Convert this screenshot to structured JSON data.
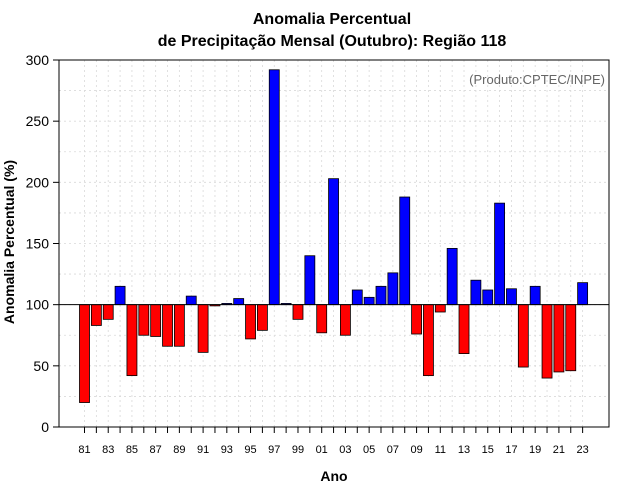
{
  "chart_data": {
    "type": "bar",
    "title": [
      "Anomalia Percentual",
      "de Precipitação Mensal (Outubro): Região 118"
    ],
    "xlabel": "Ano",
    "ylabel": "Anomalia Percentual (%)",
    "annotation": "(Produto:CPTEC/INPE)",
    "ylim": [
      0,
      300
    ],
    "yticks": [
      0,
      50,
      100,
      150,
      200,
      250,
      300
    ],
    "baseline": 100,
    "colors": {
      "above": "#0000ff",
      "below": "#ff0000",
      "outline": "#000000",
      "grid": "#d9d9d9"
    },
    "x_tick_labels": [
      "81",
      "83",
      "85",
      "87",
      "89",
      "91",
      "93",
      "95",
      "97",
      "99",
      "01",
      "03",
      "05",
      "07",
      "09",
      "11",
      "13",
      "15",
      "17",
      "19",
      "21",
      "23"
    ],
    "categories": [
      "81",
      "82",
      "83",
      "84",
      "85",
      "86",
      "87",
      "88",
      "89",
      "90",
      "91",
      "92",
      "93",
      "94",
      "95",
      "96",
      "97",
      "98",
      "99",
      "00",
      "01",
      "02",
      "03",
      "04",
      "05",
      "06",
      "07",
      "08",
      "09",
      "10",
      "11",
      "12",
      "13",
      "14",
      "15",
      "16",
      "17",
      "18",
      "19",
      "20",
      "21",
      "22",
      "23"
    ],
    "values": [
      20,
      83,
      88,
      115,
      42,
      75,
      74,
      66,
      66,
      107,
      61,
      99,
      101,
      105,
      72,
      79,
      292,
      101,
      88,
      140,
      77,
      203,
      75,
      112,
      106,
      115,
      126,
      188,
      76,
      42,
      94,
      146,
      60,
      120,
      112,
      183,
      113,
      49,
      115,
      40,
      45,
      46,
      118
    ]
  }
}
